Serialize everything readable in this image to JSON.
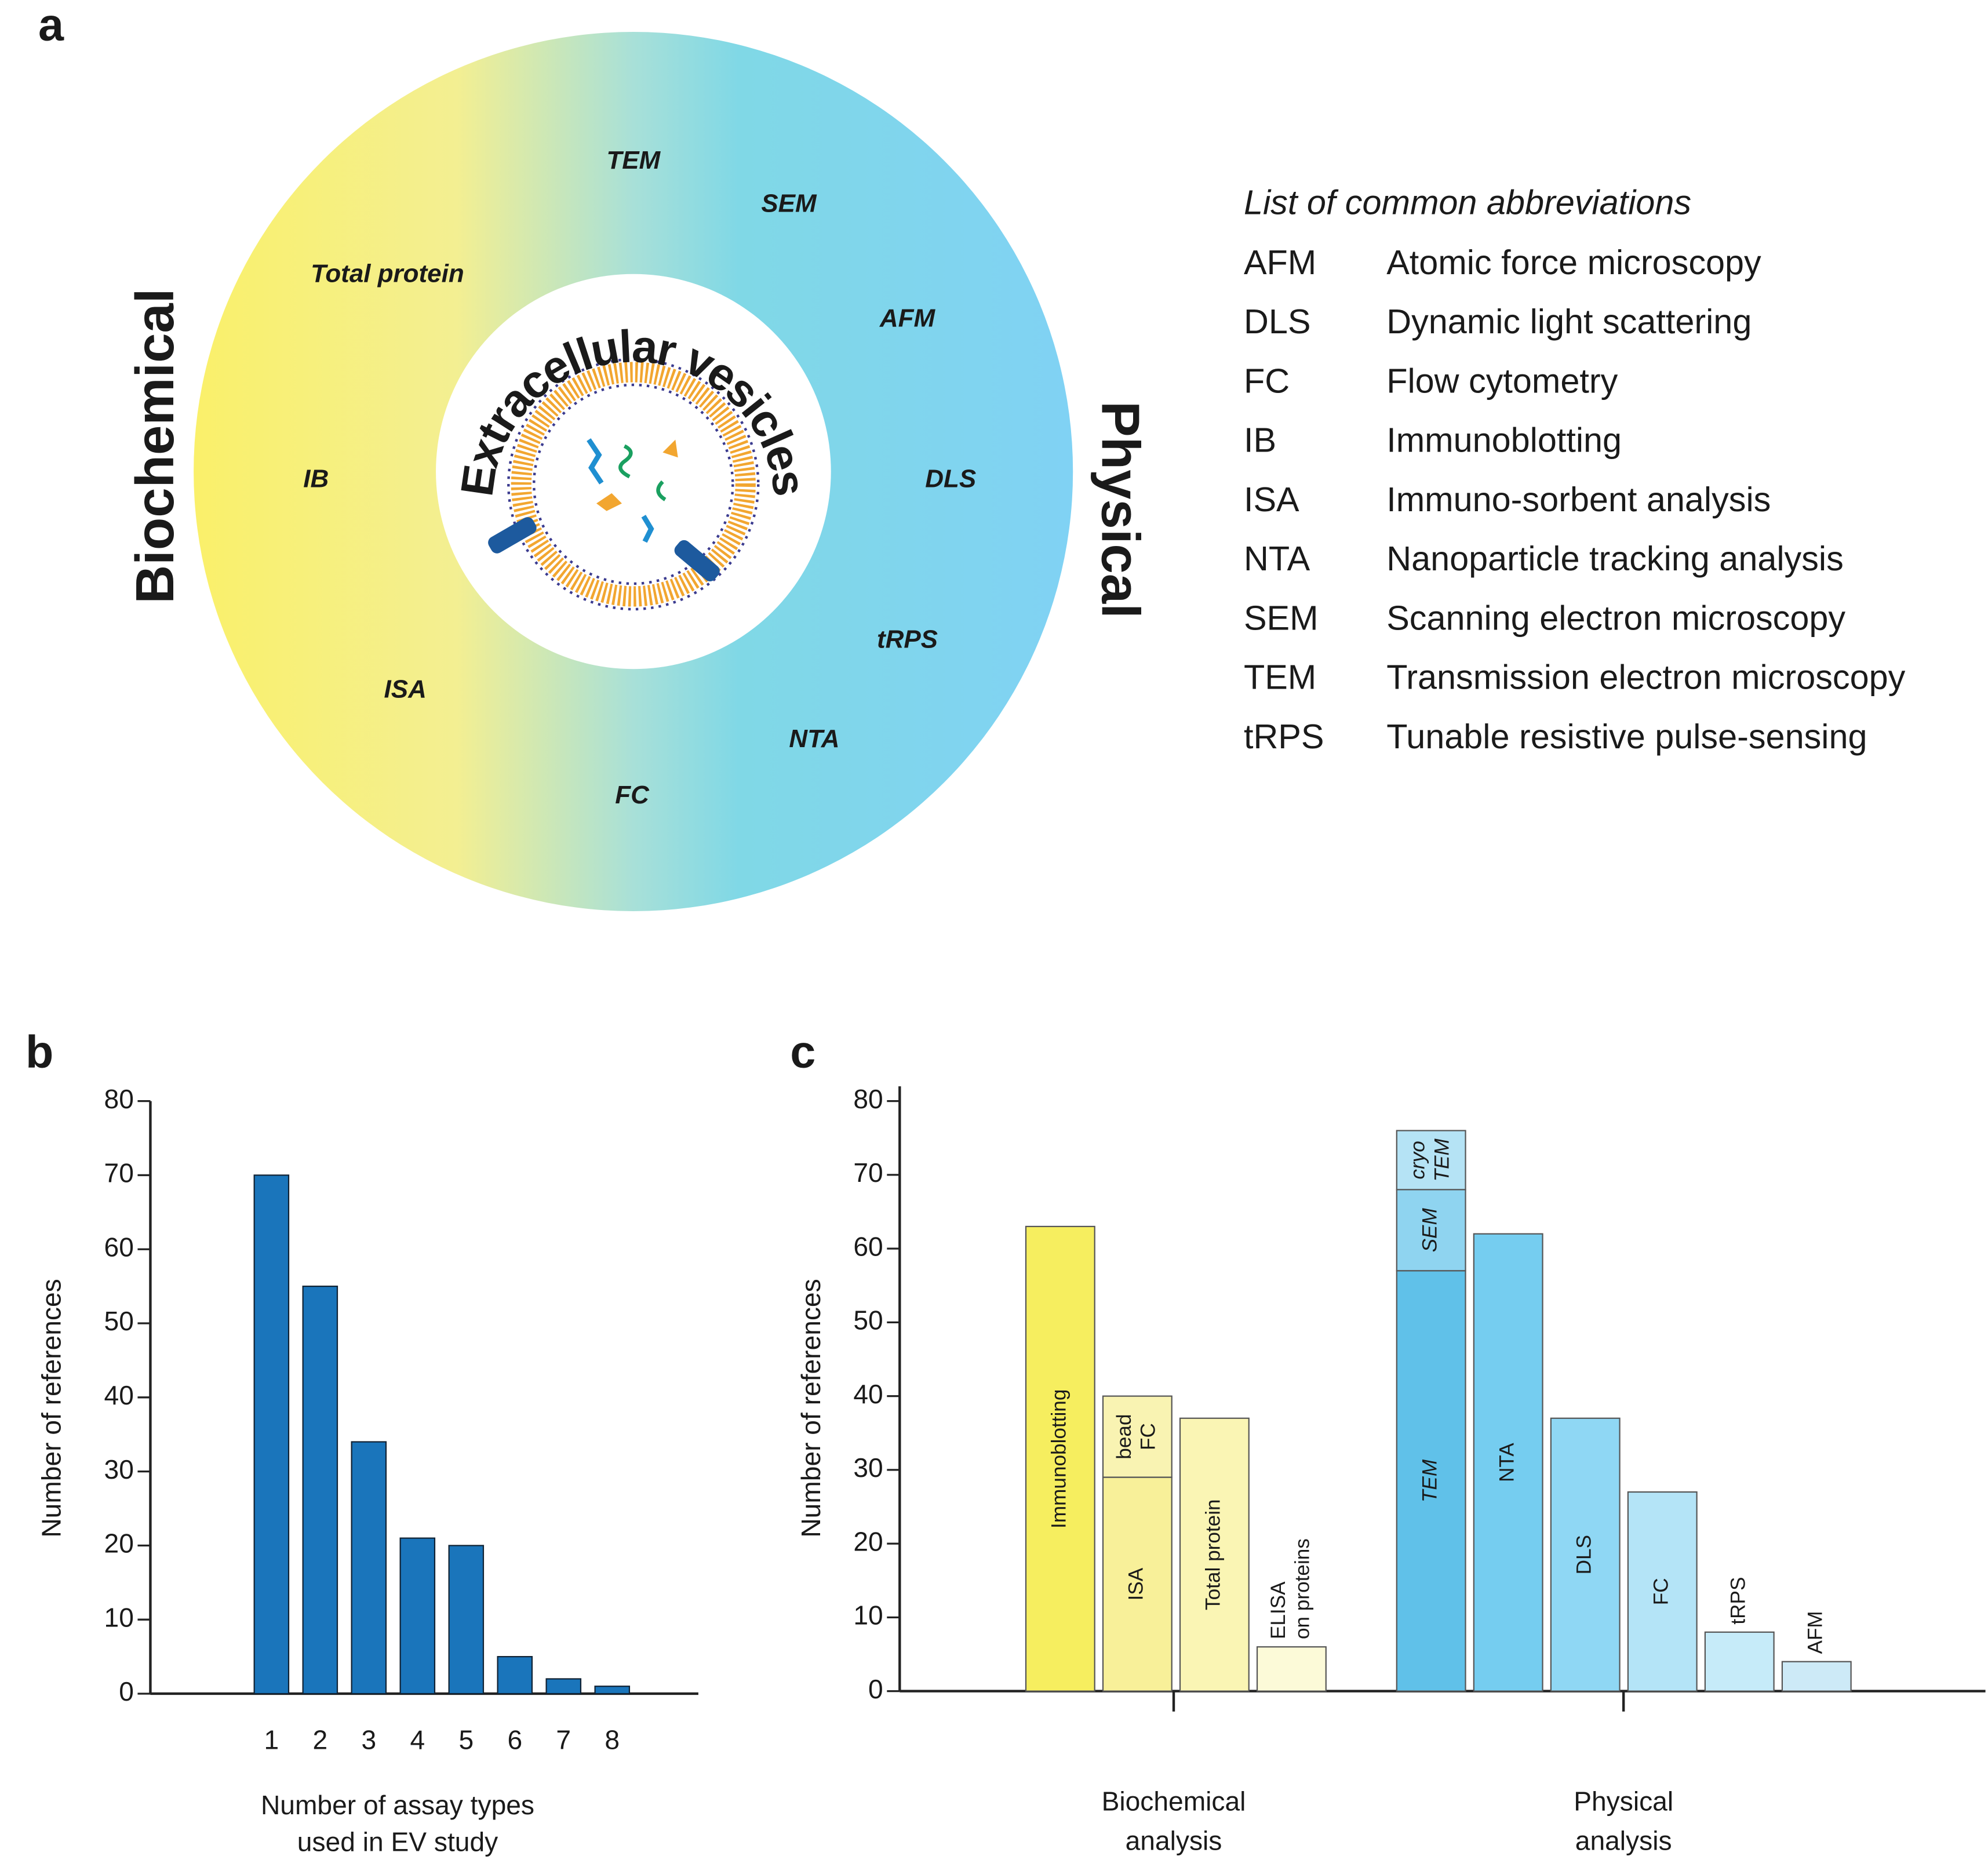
{
  "panel_labels": [
    "a",
    "b",
    "c"
  ],
  "diagram": {
    "center_label": "Extracellular vesicles",
    "sides": [
      "Biochemical",
      "Physical"
    ],
    "ring_labels": [
      "TEM",
      "SEM",
      "Total protein",
      "AFM",
      "IB",
      "DLS",
      "tRPS",
      "ISA",
      "NTA",
      "FC"
    ]
  },
  "abbreviations": {
    "title": "List of common abbreviations",
    "rows": [
      [
        "AFM",
        "Atomic force microscopy"
      ],
      [
        "DLS",
        "Dynamic light scattering"
      ],
      [
        "FC",
        "Flow cytometry"
      ],
      [
        "IB",
        "Immunoblotting"
      ],
      [
        "ISA",
        "Immuno-sorbent analysis"
      ],
      [
        "NTA",
        "Nanoparticle tracking analysis"
      ],
      [
        "SEM",
        "Scanning electron microscopy"
      ],
      [
        "TEM",
        "Transmission electron microscopy"
      ],
      [
        "tRPS",
        "Tunable resistive pulse-sensing"
      ]
    ]
  },
  "chart_data": [
    {
      "type": "bar",
      "ylabel": "Number of references",
      "xlabel": [
        "Number of assay types",
        "used in EV study"
      ],
      "categories": [
        "1",
        "2",
        "3",
        "4",
        "5",
        "6",
        "7",
        "8"
      ],
      "values": [
        70,
        55,
        34,
        21,
        20,
        5,
        2,
        1
      ],
      "color": "#1a75bb",
      "ylim": [
        0,
        80
      ],
      "yticks": [
        0,
        10,
        20,
        30,
        40,
        50,
        60,
        70,
        80
      ]
    },
    {
      "type": "stacked_bar",
      "ylabel": "Number of references",
      "groups": [
        [
          "Biochemical",
          "analysis"
        ],
        [
          "Physical",
          "analysis"
        ]
      ],
      "ylim": [
        0,
        82
      ],
      "yticks": [
        0,
        10,
        20,
        30,
        40,
        50,
        60,
        70,
        80
      ],
      "bars": [
        {
          "group": 0,
          "segments": [
            {
              "label": [
                "Immunoblotting"
              ],
              "value": 63,
              "color": "#f6ee5f"
            }
          ]
        },
        {
          "group": 0,
          "segments": [
            {
              "label": [
                "ISA"
              ],
              "value": 29,
              "color": "#f8f099"
            },
            {
              "label": [
                "bead",
                "FC"
              ],
              "value": 11,
              "color": "#f9f3b2"
            }
          ]
        },
        {
          "group": 0,
          "segments": [
            {
              "label": [
                "Total protein"
              ],
              "value": 37,
              "color": "#faf5b4"
            }
          ]
        },
        {
          "group": 0,
          "segments": [
            {
              "label": [
                "ELISA",
                "on proteins"
              ],
              "value": 6,
              "color": "#fcfad8"
            }
          ]
        },
        {
          "group": 1,
          "segments": [
            {
              "label": [
                "TEM"
              ],
              "value": 57,
              "color": "#60c1e9",
              "italic": true
            },
            {
              "label": [
                "SEM"
              ],
              "value": 11,
              "color": "#8fd4f0",
              "italic": true
            },
            {
              "label": [
                "cryo",
                "TEM"
              ],
              "value": 8,
              "color": "#b5e3f5",
              "italic": true
            }
          ]
        },
        {
          "group": 1,
          "segments": [
            {
              "label": [
                "NTA"
              ],
              "value": 62,
              "color": "#75cdf0"
            }
          ]
        },
        {
          "group": 1,
          "segments": [
            {
              "label": [
                "DLS"
              ],
              "value": 37,
              "color": "#8fd7f4"
            }
          ]
        },
        {
          "group": 1,
          "segments": [
            {
              "label": [
                "FC"
              ],
              "value": 27,
              "color": "#b4e4f7"
            }
          ]
        },
        {
          "group": 1,
          "segments": [
            {
              "label": [
                "tRPS"
              ],
              "value": 8,
              "color": "#c6ebf9"
            }
          ]
        },
        {
          "group": 1,
          "segments": [
            {
              "label": [
                "AFM"
              ],
              "value": 4,
              "color": "#cdeaf7"
            }
          ]
        }
      ]
    }
  ]
}
